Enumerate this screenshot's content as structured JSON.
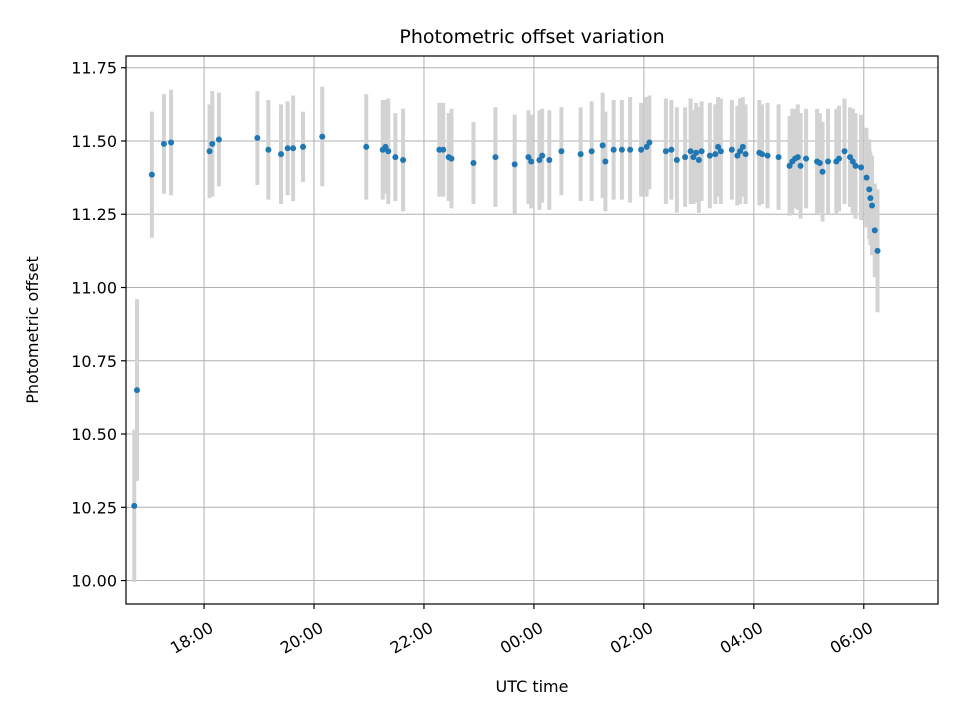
{
  "chart_data": {
    "type": "scatter",
    "title": "Photometric offset variation",
    "xlabel": "UTC time",
    "ylabel": "Photometric offset",
    "x_unit": "hours (UTC, continuing past midnight as 24+)",
    "xlim": [
      16.58,
      31.35
    ],
    "ylim": [
      9.92,
      11.79
    ],
    "grid": true,
    "x_ticks": [
      {
        "value": 18,
        "label": "18:00"
      },
      {
        "value": 20,
        "label": "20:00"
      },
      {
        "value": 22,
        "label": "22:00"
      },
      {
        "value": 24,
        "label": "00:00"
      },
      {
        "value": 26,
        "label": "02:00"
      },
      {
        "value": 28,
        "label": "04:00"
      },
      {
        "value": 30,
        "label": "06:00"
      }
    ],
    "y_ticks": [
      {
        "value": 10.0,
        "label": "10.00"
      },
      {
        "value": 10.25,
        "label": "10.25"
      },
      {
        "value": 10.5,
        "label": "10.50"
      },
      {
        "value": 10.75,
        "label": "10.75"
      },
      {
        "value": 11.0,
        "label": "11.00"
      },
      {
        "value": 11.25,
        "label": "11.25"
      },
      {
        "value": 11.5,
        "label": "11.50"
      },
      {
        "value": 11.75,
        "label": "11.75"
      }
    ],
    "colors": {
      "points": "#1f77b4",
      "error_bars": "#d3d3d3",
      "grid": "#b0b0b0"
    },
    "points": [
      [
        16.73,
        10.255,
        0.26
      ],
      [
        16.78,
        10.65,
        0.31
      ],
      [
        17.05,
        11.385,
        0.215
      ],
      [
        17.27,
        11.49,
        0.17
      ],
      [
        17.4,
        11.495,
        0.18
      ],
      [
        18.1,
        11.465,
        0.16
      ],
      [
        18.15,
        11.49,
        0.18
      ],
      [
        18.27,
        11.505,
        0.16
      ],
      [
        18.97,
        11.51,
        0.16
      ],
      [
        19.17,
        11.47,
        0.17
      ],
      [
        19.4,
        11.455,
        0.17
      ],
      [
        19.52,
        11.475,
        0.16
      ],
      [
        19.62,
        11.475,
        0.18
      ],
      [
        19.8,
        11.48,
        0.12
      ],
      [
        20.15,
        11.515,
        0.17
      ],
      [
        20.95,
        11.48,
        0.18
      ],
      [
        21.25,
        11.47,
        0.17
      ],
      [
        21.3,
        11.48,
        0.16
      ],
      [
        21.35,
        11.465,
        0.18
      ],
      [
        21.48,
        11.445,
        0.15
      ],
      [
        21.62,
        11.435,
        0.175
      ],
      [
        22.28,
        11.47,
        0.16
      ],
      [
        22.35,
        11.47,
        0.16
      ],
      [
        22.45,
        11.445,
        0.15
      ],
      [
        22.5,
        11.44,
        0.17
      ],
      [
        22.9,
        11.425,
        0.14
      ],
      [
        23.3,
        11.445,
        0.17
      ],
      [
        23.65,
        11.42,
        0.17
      ],
      [
        23.9,
        11.445,
        0.16
      ],
      [
        23.95,
        11.43,
        0.16
      ],
      [
        24.1,
        11.435,
        0.17
      ],
      [
        24.15,
        11.45,
        0.16
      ],
      [
        24.28,
        11.435,
        0.17
      ],
      [
        24.5,
        11.465,
        0.15
      ],
      [
        24.85,
        11.455,
        0.16
      ],
      [
        25.05,
        11.465,
        0.17
      ],
      [
        25.25,
        11.485,
        0.18
      ],
      [
        25.3,
        11.43,
        0.17
      ],
      [
        25.45,
        11.47,
        0.17
      ],
      [
        25.6,
        11.47,
        0.17
      ],
      [
        25.75,
        11.47,
        0.18
      ],
      [
        25.95,
        11.47,
        0.16
      ],
      [
        26.05,
        11.48,
        0.17
      ],
      [
        26.1,
        11.495,
        0.16
      ],
      [
        26.4,
        11.465,
        0.18
      ],
      [
        26.5,
        11.47,
        0.17
      ],
      [
        26.6,
        11.435,
        0.18
      ],
      [
        26.75,
        11.445,
        0.17
      ],
      [
        26.85,
        11.465,
        0.18
      ],
      [
        26.9,
        11.445,
        0.16
      ],
      [
        26.95,
        11.46,
        0.17
      ],
      [
        27.0,
        11.435,
        0.18
      ],
      [
        27.05,
        11.465,
        0.17
      ],
      [
        27.2,
        11.45,
        0.18
      ],
      [
        27.3,
        11.455,
        0.17
      ],
      [
        27.35,
        11.48,
        0.17
      ],
      [
        27.4,
        11.465,
        0.18
      ],
      [
        27.6,
        11.47,
        0.17
      ],
      [
        27.7,
        11.45,
        0.17
      ],
      [
        27.75,
        11.465,
        0.18
      ],
      [
        27.8,
        11.48,
        0.17
      ],
      [
        27.85,
        11.455,
        0.17
      ],
      [
        28.1,
        11.46,
        0.18
      ],
      [
        28.15,
        11.455,
        0.17
      ],
      [
        28.25,
        11.45,
        0.18
      ],
      [
        28.45,
        11.445,
        0.18
      ],
      [
        28.65,
        11.415,
        0.17
      ],
      [
        28.7,
        11.43,
        0.18
      ],
      [
        28.75,
        11.44,
        0.17
      ],
      [
        28.8,
        11.445,
        0.18
      ],
      [
        28.85,
        11.415,
        0.18
      ],
      [
        28.95,
        11.44,
        0.17
      ],
      [
        29.15,
        11.43,
        0.18
      ],
      [
        29.2,
        11.425,
        0.17
      ],
      [
        29.25,
        11.395,
        0.17
      ],
      [
        29.35,
        11.43,
        0.18
      ],
      [
        29.5,
        11.43,
        0.18
      ],
      [
        29.55,
        11.44,
        0.18
      ],
      [
        29.65,
        11.465,
        0.18
      ],
      [
        29.75,
        11.445,
        0.17
      ],
      [
        29.8,
        11.43,
        0.18
      ],
      [
        29.85,
        11.415,
        0.18
      ],
      [
        29.95,
        11.41,
        0.18
      ],
      [
        30.05,
        11.375,
        0.17
      ],
      [
        30.1,
        11.335,
        0.17
      ],
      [
        30.12,
        11.305,
        0.16
      ],
      [
        30.15,
        11.28,
        0.17
      ],
      [
        30.2,
        11.195,
        0.16
      ],
      [
        30.25,
        11.125,
        0.21
      ]
    ]
  }
}
